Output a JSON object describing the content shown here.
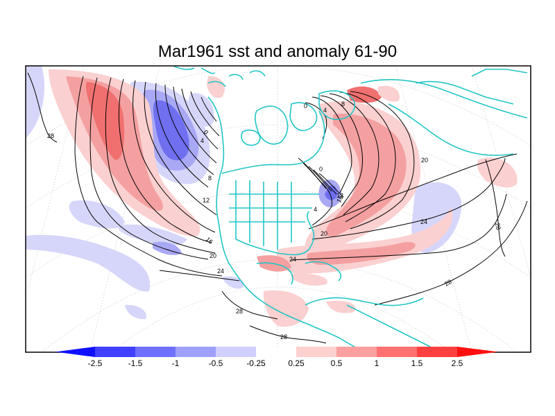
{
  "title": "Mar1961 sst and anomaly 61-90",
  "colors": {
    "coast": "#22c5c5",
    "contour": "#000000",
    "graticule": "#a0a0a0",
    "neg_strong": "#5555ee",
    "neg_mid": "#8888f0",
    "neg_light": "#d6d6fa",
    "pos_light": "#fbd0d0",
    "pos_mid": "#f4a0a0",
    "pos_strong": "#f07070"
  },
  "contour_labels": [
    {
      "text": "28",
      "id": "c28-pacific-north"
    },
    {
      "text": "0",
      "id": "c0-alaska"
    },
    {
      "text": "4",
      "id": "c4-alaska"
    },
    {
      "text": "8",
      "id": "c8-pacific"
    },
    {
      "text": "12",
      "id": "c12-pacific"
    },
    {
      "text": "16",
      "id": "c16-pacific"
    },
    {
      "text": "20",
      "id": "c20-pacific"
    },
    {
      "text": "24",
      "id": "c24-pacific"
    },
    {
      "text": "28",
      "id": "c28-pacific-south"
    },
    {
      "text": "28",
      "id": "c28-central"
    },
    {
      "text": "0",
      "id": "c0-greenland-west"
    },
    {
      "text": "4",
      "id": "c4-greenland"
    },
    {
      "text": "8",
      "id": "c8-greenland"
    },
    {
      "text": "0",
      "id": "c0-labrador"
    },
    {
      "text": "4",
      "id": "c4-newfoundland"
    },
    {
      "text": "16",
      "id": "c16-atlantic"
    },
    {
      "text": "12",
      "id": "c12-atlantic"
    },
    {
      "text": "4",
      "id": "c4-gulf"
    },
    {
      "text": "20",
      "id": "c20-atlantic"
    },
    {
      "text": "24",
      "id": "c24-caribbean"
    },
    {
      "text": "20",
      "id": "c20-europe"
    },
    {
      "text": "24",
      "id": "c24-east-atlantic"
    },
    {
      "text": "28",
      "id": "c28-africa"
    },
    {
      "text": "28",
      "id": "c28-south-atlantic"
    }
  ],
  "colorbar": {
    "labels": [
      "-2.5",
      "-1.5",
      "-1",
      "-0.5",
      "-0.25",
      "0.25",
      "0.5",
      "1",
      "1.5",
      "2.5"
    ],
    "colors": [
      "#1010ff",
      "#4040ff",
      "#7070ff",
      "#a0a0ff",
      "#d0d0ff",
      "#ffffff",
      "#ffd0d0",
      "#ffa0a0",
      "#ff7070",
      "#ff4040",
      "#ff1010"
    ]
  }
}
